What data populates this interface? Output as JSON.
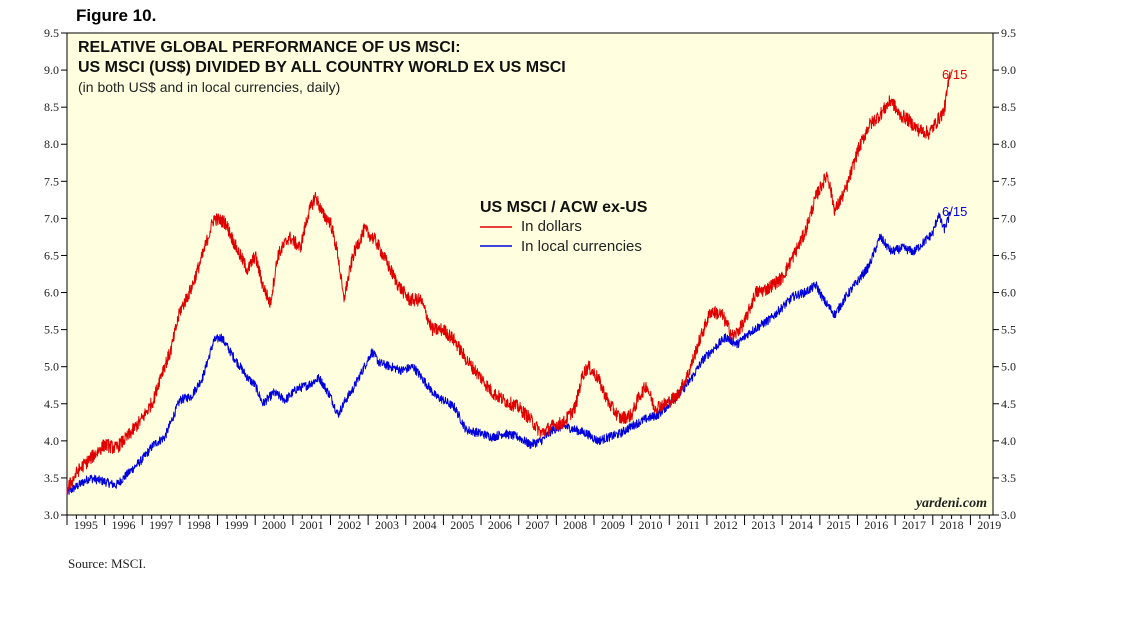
{
  "figure_label": "Figure 10.",
  "source": "Source: MSCI.",
  "watermark": "yardeni.com",
  "chart_data": {
    "type": "line",
    "title": "RELATIVE GLOBAL PERFORMANCE OF US MSCI:",
    "title_line2": "US MSCI (US$) DIVIDED BY ALL COUNTRY WORLD EX US MSCI",
    "subtitle": "(in both US$ and in local currencies, daily)",
    "legend_title": "US MSCI / ACW ex-US",
    "xlabel": "",
    "ylabel": "",
    "ylim": [
      3.0,
      9.5
    ],
    "xlim": [
      1995,
      2019.6
    ],
    "yticks": [
      "3.0",
      "3.5",
      "4.0",
      "4.5",
      "5.0",
      "5.5",
      "6.0",
      "6.5",
      "7.0",
      "7.5",
      "8.0",
      "8.5",
      "9.0",
      "9.5"
    ],
    "xticks": [
      "1995",
      "1996",
      "1997",
      "1998",
      "1999",
      "2000",
      "2001",
      "2002",
      "2003",
      "2004",
      "2005",
      "2006",
      "2007",
      "2008",
      "2009",
      "2010",
      "2011",
      "2012",
      "2013",
      "2014",
      "2015",
      "2016",
      "2017",
      "2018",
      "2019"
    ],
    "series": [
      {
        "name": "In dollars",
        "color": "#e00000",
        "end_label": "6/15",
        "points": [
          [
            1995.0,
            3.35
          ],
          [
            1995.3,
            3.6
          ],
          [
            1995.6,
            3.75
          ],
          [
            1996.0,
            3.95
          ],
          [
            1996.3,
            3.9
          ],
          [
            1996.6,
            4.05
          ],
          [
            1997.0,
            4.3
          ],
          [
            1997.3,
            4.55
          ],
          [
            1997.5,
            4.9
          ],
          [
            1997.75,
            5.2
          ],
          [
            1998.0,
            5.75
          ],
          [
            1998.3,
            6.05
          ],
          [
            1998.6,
            6.5
          ],
          [
            1998.9,
            7.0
          ],
          [
            1999.2,
            6.95
          ],
          [
            1999.5,
            6.6
          ],
          [
            1999.8,
            6.3
          ],
          [
            2000.0,
            6.5
          ],
          [
            2000.2,
            6.1
          ],
          [
            2000.4,
            5.85
          ],
          [
            2000.6,
            6.5
          ],
          [
            2000.9,
            6.75
          ],
          [
            2001.2,
            6.6
          ],
          [
            2001.4,
            7.05
          ],
          [
            2001.6,
            7.3
          ],
          [
            2001.8,
            7.05
          ],
          [
            2002.0,
            6.95
          ],
          [
            2002.2,
            6.5
          ],
          [
            2002.35,
            5.9
          ],
          [
            2002.6,
            6.5
          ],
          [
            2002.9,
            6.85
          ],
          [
            2003.2,
            6.7
          ],
          [
            2003.5,
            6.4
          ],
          [
            2003.8,
            6.1
          ],
          [
            2004.1,
            5.9
          ],
          [
            2004.4,
            5.9
          ],
          [
            2004.7,
            5.5
          ],
          [
            2005.0,
            5.5
          ],
          [
            2005.3,
            5.35
          ],
          [
            2005.6,
            5.1
          ],
          [
            2006.0,
            4.85
          ],
          [
            2006.3,
            4.65
          ],
          [
            2006.6,
            4.55
          ],
          [
            2007.0,
            4.45
          ],
          [
            2007.3,
            4.3
          ],
          [
            2007.6,
            4.1
          ],
          [
            2007.9,
            4.2
          ],
          [
            2008.2,
            4.25
          ],
          [
            2008.5,
            4.45
          ],
          [
            2008.7,
            4.9
          ],
          [
            2008.85,
            5.0
          ],
          [
            2009.1,
            4.85
          ],
          [
            2009.4,
            4.5
          ],
          [
            2009.7,
            4.3
          ],
          [
            2010.0,
            4.35
          ],
          [
            2010.2,
            4.6
          ],
          [
            2010.4,
            4.75
          ],
          [
            2010.6,
            4.45
          ],
          [
            2010.9,
            4.5
          ],
          [
            2011.2,
            4.6
          ],
          [
            2011.5,
            4.9
          ],
          [
            2011.8,
            5.35
          ],
          [
            2012.1,
            5.75
          ],
          [
            2012.4,
            5.7
          ],
          [
            2012.7,
            5.4
          ],
          [
            2013.0,
            5.6
          ],
          [
            2013.3,
            6.0
          ],
          [
            2013.6,
            6.05
          ],
          [
            2014.0,
            6.2
          ],
          [
            2014.3,
            6.5
          ],
          [
            2014.6,
            6.8
          ],
          [
            2014.9,
            7.3
          ],
          [
            2015.2,
            7.6
          ],
          [
            2015.4,
            7.1
          ],
          [
            2015.7,
            7.4
          ],
          [
            2016.0,
            7.9
          ],
          [
            2016.3,
            8.25
          ],
          [
            2016.6,
            8.4
          ],
          [
            2016.9,
            8.6
          ],
          [
            2017.1,
            8.4
          ],
          [
            2017.3,
            8.35
          ],
          [
            2017.6,
            8.2
          ],
          [
            2017.9,
            8.15
          ],
          [
            2018.1,
            8.3
          ],
          [
            2018.3,
            8.45
          ],
          [
            2018.46,
            8.95
          ]
        ]
      },
      {
        "name": "In local currencies",
        "color": "#0000dd",
        "end_label": "6/15",
        "points": [
          [
            1995.0,
            3.3
          ],
          [
            1995.3,
            3.4
          ],
          [
            1995.6,
            3.5
          ],
          [
            1996.0,
            3.45
          ],
          [
            1996.3,
            3.4
          ],
          [
            1996.6,
            3.55
          ],
          [
            1997.0,
            3.75
          ],
          [
            1997.3,
            3.95
          ],
          [
            1997.6,
            4.05
          ],
          [
            1998.0,
            4.55
          ],
          [
            1998.3,
            4.6
          ],
          [
            1998.6,
            4.85
          ],
          [
            1998.9,
            5.35
          ],
          [
            1999.1,
            5.4
          ],
          [
            1999.4,
            5.15
          ],
          [
            1999.8,
            4.85
          ],
          [
            2000.0,
            4.75
          ],
          [
            2000.2,
            4.5
          ],
          [
            2000.5,
            4.65
          ],
          [
            2000.8,
            4.55
          ],
          [
            2001.1,
            4.7
          ],
          [
            2001.4,
            4.75
          ],
          [
            2001.7,
            4.85
          ],
          [
            2002.0,
            4.6
          ],
          [
            2002.2,
            4.35
          ],
          [
            2002.4,
            4.55
          ],
          [
            2002.6,
            4.7
          ],
          [
            2002.9,
            5.0
          ],
          [
            2003.1,
            5.2
          ],
          [
            2003.3,
            5.05
          ],
          [
            2003.6,
            5.0
          ],
          [
            2003.9,
            4.95
          ],
          [
            2004.2,
            5.0
          ],
          [
            2004.5,
            4.8
          ],
          [
            2004.8,
            4.6
          ],
          [
            2005.0,
            4.55
          ],
          [
            2005.3,
            4.45
          ],
          [
            2005.6,
            4.15
          ],
          [
            2006.0,
            4.1
          ],
          [
            2006.3,
            4.05
          ],
          [
            2006.6,
            4.1
          ],
          [
            2007.0,
            4.05
          ],
          [
            2007.3,
            3.95
          ],
          [
            2007.6,
            4.0
          ],
          [
            2007.9,
            4.15
          ],
          [
            2008.2,
            4.2
          ],
          [
            2008.5,
            4.15
          ],
          [
            2008.8,
            4.1
          ],
          [
            2009.1,
            4.0
          ],
          [
            2009.4,
            4.05
          ],
          [
            2009.7,
            4.1
          ],
          [
            2010.0,
            4.2
          ],
          [
            2010.4,
            4.3
          ],
          [
            2010.7,
            4.35
          ],
          [
            2011.0,
            4.5
          ],
          [
            2011.3,
            4.65
          ],
          [
            2011.6,
            4.85
          ],
          [
            2011.9,
            5.1
          ],
          [
            2012.2,
            5.25
          ],
          [
            2012.5,
            5.4
          ],
          [
            2012.8,
            5.3
          ],
          [
            2013.1,
            5.45
          ],
          [
            2013.4,
            5.55
          ],
          [
            2013.7,
            5.65
          ],
          [
            2014.0,
            5.8
          ],
          [
            2014.3,
            5.95
          ],
          [
            2014.6,
            6.0
          ],
          [
            2014.9,
            6.1
          ],
          [
            2015.1,
            5.9
          ],
          [
            2015.4,
            5.7
          ],
          [
            2015.7,
            5.95
          ],
          [
            2016.0,
            6.15
          ],
          [
            2016.3,
            6.35
          ],
          [
            2016.6,
            6.75
          ],
          [
            2016.9,
            6.55
          ],
          [
            2017.2,
            6.6
          ],
          [
            2017.5,
            6.55
          ],
          [
            2017.8,
            6.7
          ],
          [
            2018.0,
            6.8
          ],
          [
            2018.15,
            7.05
          ],
          [
            2018.3,
            6.85
          ],
          [
            2018.46,
            7.05
          ]
        ]
      }
    ]
  }
}
